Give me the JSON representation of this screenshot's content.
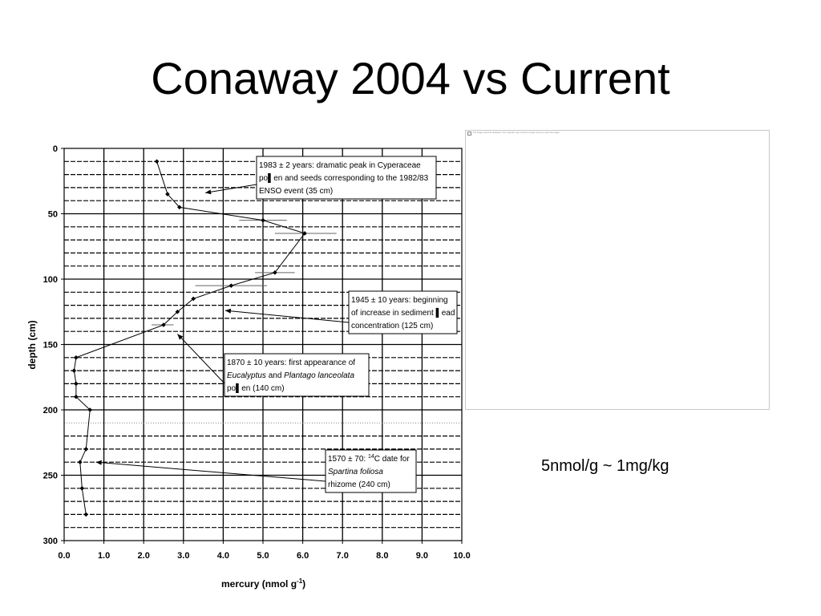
{
  "slide": {
    "title": "Conaway 2004 vs Current",
    "note": "5nmol/g ~ 1mg/kg",
    "image_placeholder_text": "The image cannot be displayed. Your computer may not have enough memory to open the image."
  },
  "chart_data": {
    "type": "line",
    "title": "",
    "xlabel": "mercury (nmol g",
    "xlabel_superscript": "-1",
    "xlabel_suffix": ")",
    "ylabel": "depth (cm)",
    "xlim": [
      0,
      10
    ],
    "ylim": [
      0,
      300
    ],
    "y_inverted": true,
    "grid": true,
    "x_ticks": [
      "0.0",
      "1.0",
      "2.0",
      "3.0",
      "4.0",
      "5.0",
      "6.0",
      "7.0",
      "8.0",
      "9.0",
      "10.0"
    ],
    "y_ticks": [
      "0",
      "50",
      "100",
      "150",
      "200",
      "250",
      "300"
    ],
    "points": [
      {
        "x": 2.33,
        "y": 10
      },
      {
        "x": 2.6,
        "y": 35
      },
      {
        "x": 2.9,
        "y": 45
      },
      {
        "x": 5.0,
        "y": 55
      },
      {
        "x": 6.05,
        "y": 65
      },
      {
        "x": 5.3,
        "y": 95
      },
      {
        "x": 4.2,
        "y": 105
      },
      {
        "x": 3.25,
        "y": 115
      },
      {
        "x": 2.85,
        "y": 125
      },
      {
        "x": 2.5,
        "y": 135
      },
      {
        "x": 0.3,
        "y": 160
      },
      {
        "x": 0.25,
        "y": 170
      },
      {
        "x": 0.3,
        "y": 180
      },
      {
        "x": 0.3,
        "y": 190
      },
      {
        "x": 0.65,
        "y": 200
      },
      {
        "x": 0.55,
        "y": 230
      },
      {
        "x": 0.4,
        "y": 240
      },
      {
        "x": 0.45,
        "y": 260
      },
      {
        "x": 0.55,
        "y": 280
      }
    ],
    "error_bars": [
      {
        "y": 55,
        "x_min": 4.4,
        "x_max": 5.6
      },
      {
        "y": 65,
        "x_min": 5.3,
        "x_max": 6.85
      },
      {
        "y": 95,
        "x_min": 4.8,
        "x_max": 5.8
      },
      {
        "y": 105,
        "x_min": 3.3,
        "x_max": 5.1
      },
      {
        "y": 135,
        "x_min": 2.2,
        "x_max": 2.75
      }
    ],
    "annotations": [
      {
        "id": "ann-1983",
        "lines": [
          "1983 ± 2 years: dramatic peak in Cyperaceae",
          "po▌en and seeds corresponding to the 1982/83",
          "ENSO event (35 cm)"
        ],
        "arrow_to": {
          "x": 3.55,
          "y": 34
        }
      },
      {
        "id": "ann-1945",
        "lines": [
          "1945 ± 10 years: beginning",
          "of increase in sediment ▌ead",
          "concentration (125 cm)"
        ],
        "arrow_to": {
          "x": 4.05,
          "y": 124
        }
      },
      {
        "id": "ann-1870",
        "lines_plain": [
          "1870 ± 10 years: first appearance of"
        ],
        "line2_parts": [
          {
            "text": "Eucalyptus",
            "italic": true
          },
          {
            "text": "  and  ",
            "italic": false
          },
          {
            "text": "Plantago lanceolata",
            "italic": true
          }
        ],
        "line3": "po▌en (140 cm)",
        "arrow_to": {
          "x": 2.85,
          "y": 142
        }
      },
      {
        "id": "ann-1570",
        "line1_prefix": "1570 ± 70: ",
        "line1_sup": "14",
        "line1_suffix": "C date for",
        "line2": "Spartina foliosa",
        "line3": "rhizome (240 cm)",
        "arrow_to": {
          "x": 0.8,
          "y": 240
        }
      }
    ]
  }
}
